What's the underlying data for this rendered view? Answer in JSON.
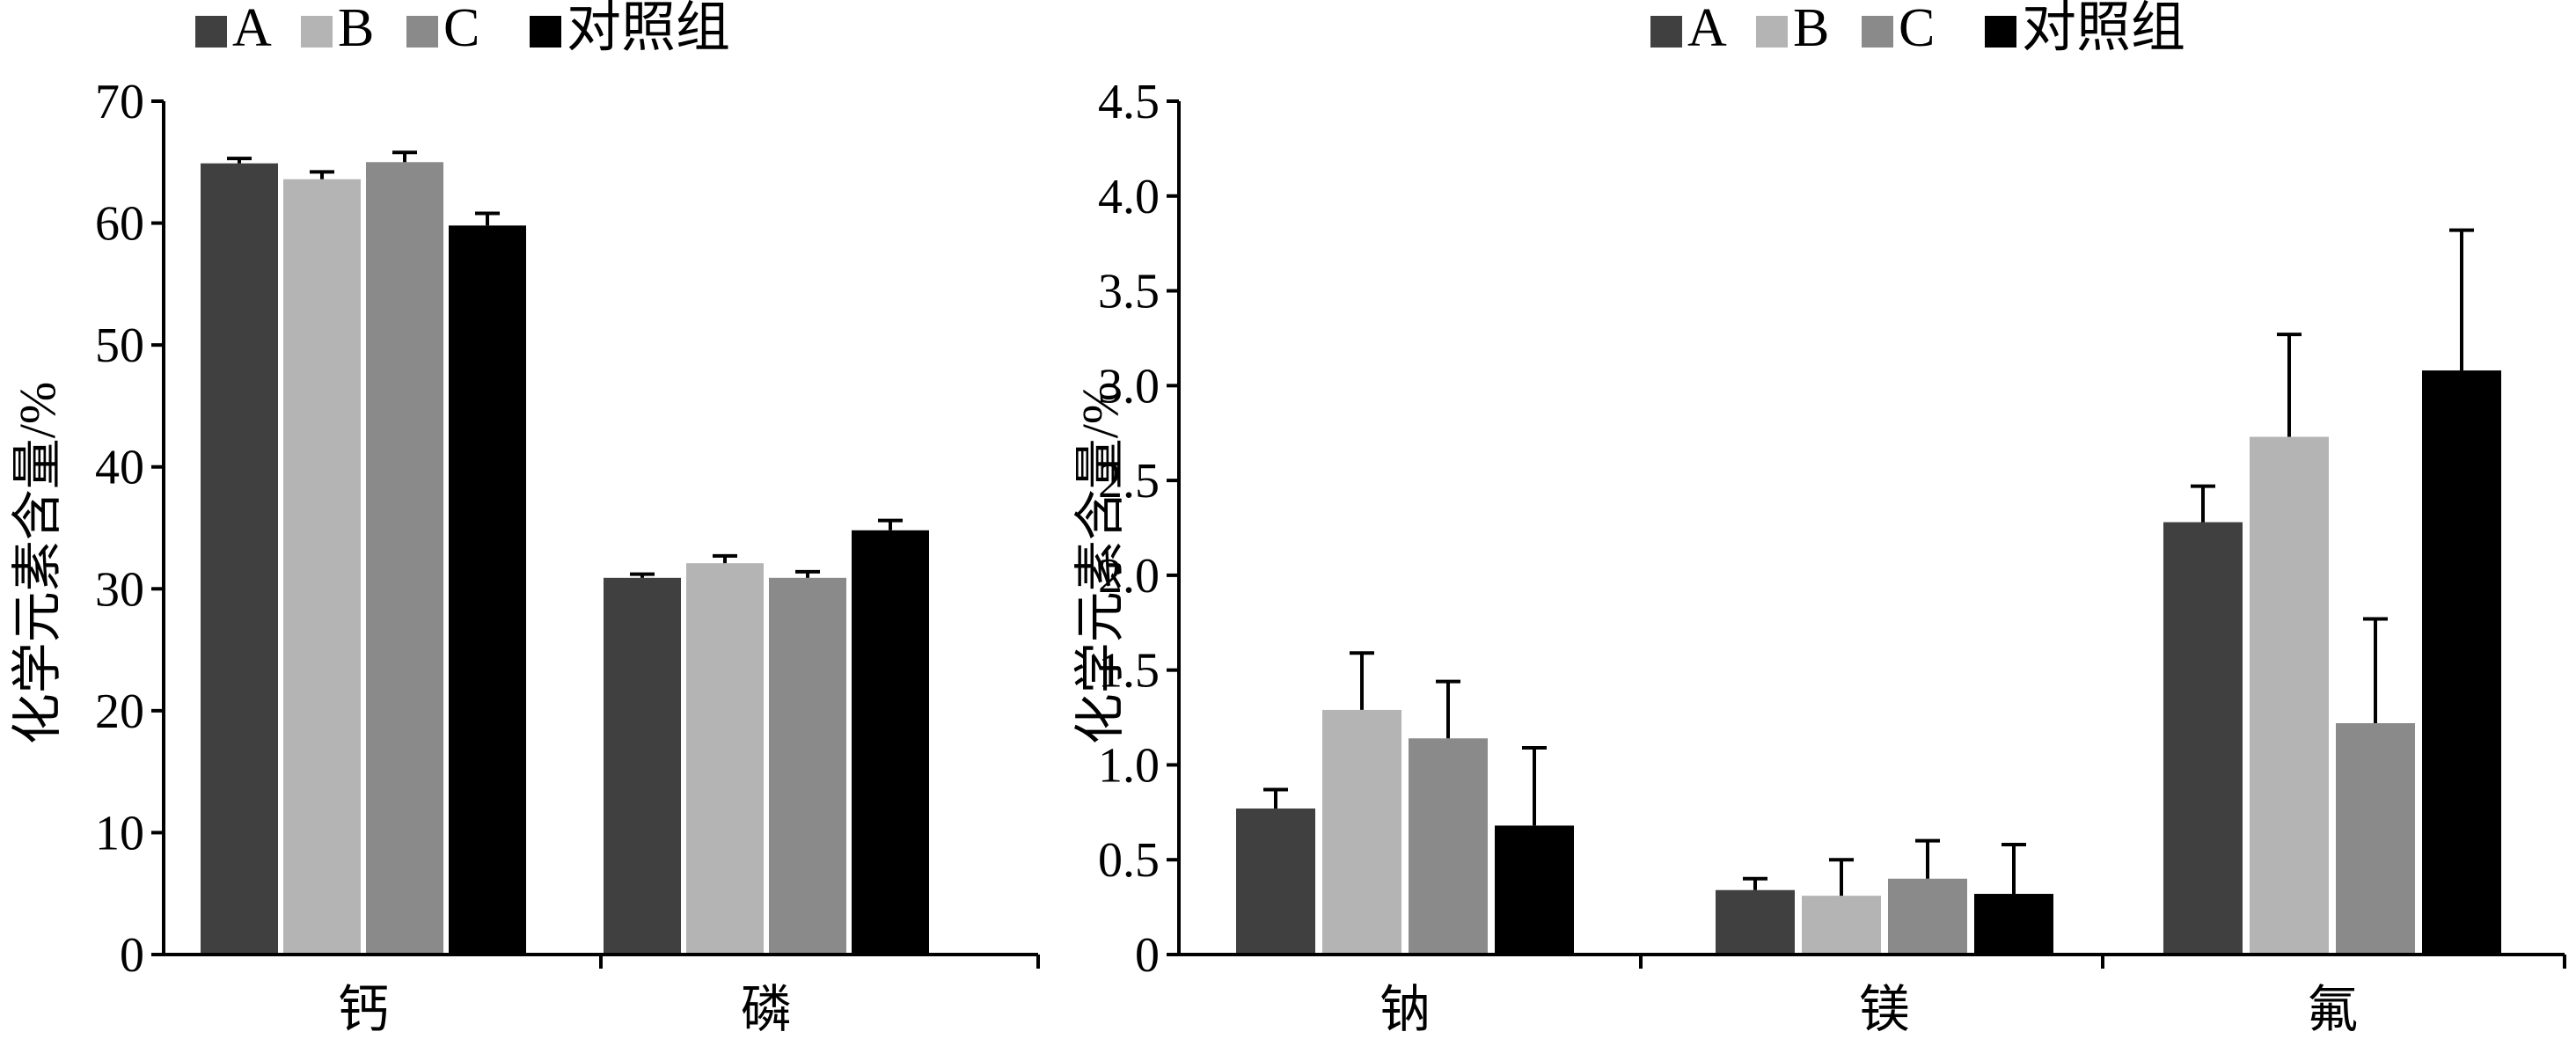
{
  "chart_data": [
    {
      "type": "bar",
      "categories": [
        "钙",
        "磷"
      ],
      "series": [
        {
          "name": "A",
          "values": [
            64.9,
            30.9
          ],
          "errors": [
            0.4,
            0.3
          ],
          "color": "#404040"
        },
        {
          "name": "B",
          "values": [
            63.6,
            32.1
          ],
          "errors": [
            0.6,
            0.6
          ],
          "color": "#b4b4b4"
        },
        {
          "name": "C",
          "values": [
            65.0,
            30.9
          ],
          "errors": [
            0.8,
            0.5
          ],
          "color": "#8a8a8a"
        },
        {
          "name": "对照组",
          "values": [
            59.8,
            34.8
          ],
          "errors": [
            1.0,
            0.8
          ],
          "color": "#000000"
        }
      ],
      "ylabel": "化学元素含量/%",
      "ylim": [
        0,
        70
      ],
      "yticks": [
        "0",
        "10",
        "20",
        "30",
        "40",
        "50",
        "60",
        "70"
      ],
      "legend": "top-left",
      "grid": false
    },
    {
      "type": "bar",
      "categories": [
        "钠",
        "镁",
        "氟"
      ],
      "series": [
        {
          "name": "A",
          "values": [
            0.77,
            0.34,
            2.28
          ],
          "errors": [
            0.1,
            0.06,
            0.19
          ],
          "color": "#404040"
        },
        {
          "name": "B",
          "values": [
            1.29,
            0.31,
            2.73
          ],
          "errors": [
            0.3,
            0.19,
            0.54
          ],
          "color": "#b4b4b4"
        },
        {
          "name": "C",
          "values": [
            1.14,
            0.4,
            1.22
          ],
          "errors": [
            0.3,
            0.2,
            0.55
          ],
          "color": "#8a8a8a"
        },
        {
          "name": "对照组",
          "values": [
            0.68,
            0.32,
            3.08
          ],
          "errors": [
            0.41,
            0.26,
            0.74
          ],
          "color": "#000000"
        }
      ],
      "ylabel": "化学元素含量/%",
      "ylim": [
        0,
        4.5
      ],
      "yticks": [
        "0",
        "0.5",
        "1.0",
        "1.5",
        "2.0",
        "2.5",
        "3.0",
        "3.5",
        "4.0",
        "4.5"
      ],
      "legend": "top-center",
      "grid": false
    }
  ]
}
